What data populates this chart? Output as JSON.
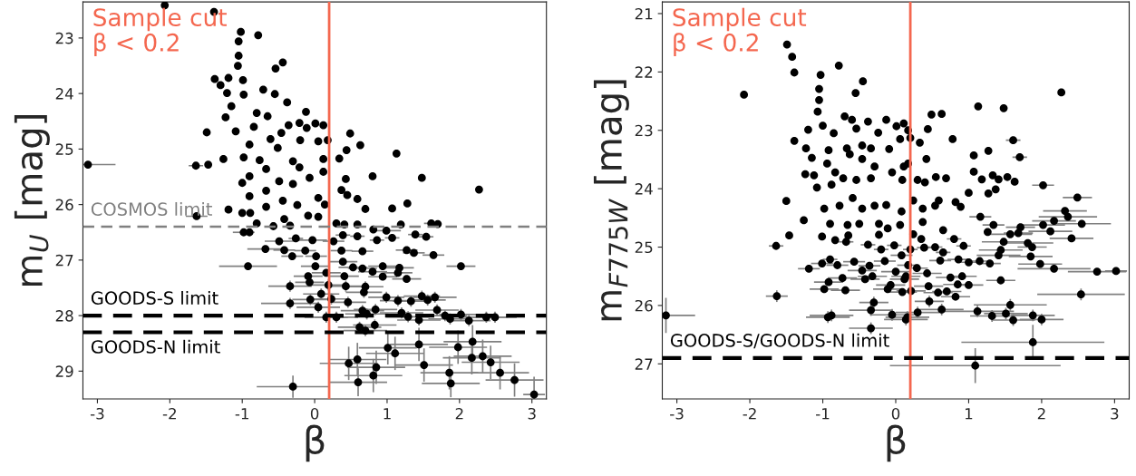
{
  "chart_data": [
    {
      "type": "scatter",
      "xlabel": "β",
      "ylabel": "m$_{U}$ [mag]",
      "xlim": [
        -3.2,
        3.2
      ],
      "ylim": [
        29.5,
        22.35
      ],
      "xticks": [
        -3,
        -2,
        -1,
        0,
        1,
        2,
        3
      ],
      "yticks": [
        23,
        24,
        25,
        26,
        27,
        28,
        29
      ],
      "marker": "circle",
      "ref_lines": [
        {
          "axis": "x",
          "value": 0.2,
          "label": "Sample cut\nβ < 0.2",
          "color": "#f4674f",
          "line_style": "solid"
        },
        {
          "axis": "y",
          "value": 26.4,
          "label": "COSMOS limit",
          "color": "#808080",
          "line_style": "dashed"
        },
        {
          "axis": "y",
          "value": 28.0,
          "label": "GOODS-S limit",
          "color": "#000000",
          "line_style": "dashed"
        },
        {
          "axis": "y",
          "value": 28.3,
          "label": "GOODS-N limit",
          "color": "#000000",
          "line_style": "dashed"
        }
      ],
      "series": [
        {
          "color": "#000000",
          "x": [
            -2.07,
            -1.39,
            -1.02,
            -0.78,
            -1.05,
            -1.05,
            -1.06,
            -0.44,
            -0.54,
            -1.38,
            -1.3,
            -1.19,
            -0.99,
            -0.71,
            -1.21,
            -0.98,
            -0.55,
            -0.38,
            -0.12,
            -1.15,
            -1.23,
            -0.8,
            -0.65,
            -1.49,
            -1.09,
            -0.84,
            -0.46,
            -0.36,
            -0.21,
            0.01,
            0.12,
            0.49,
            -0.11,
            -0.61,
            -0.2,
            0.05,
            0.18,
            0.63,
            -0.9,
            -0.51,
            1.13,
            -3.13,
            -1.64,
            -1.47,
            -1.26,
            -0.98,
            -0.76,
            -0.3,
            -0.21,
            0.12,
            0.34,
            0.44,
            0.8,
            1.48,
            2.27,
            0.43,
            0.12,
            -0.07,
            -0.67,
            -0.9,
            -1.0,
            -0.49,
            -0.3,
            -0.67,
            -0.9,
            -0.44,
            0.05,
            0.37,
            0.45,
            0.59,
            -0.67,
            -0.24,
            0.14,
            0.7,
            1.07,
            1.28,
            -1.63,
            -1.19,
            -1.0,
            -0.89,
            -0.42,
            -0.09,
            0.05,
            -0.8,
            -0.57,
            -0.34,
            0.3,
            0.41,
            0.59,
            0.81,
            0.99,
            1.19,
            1.61,
            1.7,
            -0.98,
            -0.9,
            -0.49,
            -0.26,
            -0.03,
            0.39,
            0.59,
            0.86,
            1.07,
            1.39,
            1.54,
            -0.68,
            -0.42,
            -0.13,
            0.26,
            0.37,
            0.66,
            1.27,
            1.37,
            1.64,
            -0.31,
            0.02,
            -0.92,
            0.01,
            0.39,
            0.53,
            0.66,
            0.94,
            1.17,
            2.02,
            -0.09,
            0.16,
            0.41,
            0.8,
            0.94,
            1.15,
            1.27,
            -0.07,
            -0.34,
            0.19,
            0.43,
            0.7,
            0.68,
            0.09,
            0.99,
            1.48,
            1.66,
            1.56,
            -0.06,
            0.23,
            0.46,
            1.15,
            1.33,
            -0.34,
            0.05,
            0.66,
            0.84,
            1.69,
            0.16,
            0.3,
            0.72,
            1.2,
            1.8,
            2.02,
            1.87,
            2.13,
            2.37,
            2.49,
            1.44,
            1.29,
            0.83,
            0.62,
            0.7,
            1.01,
            1.11,
            1.44,
            1.98,
            2.18,
            2.17,
            2.32,
            2.43,
            0.59,
            0.47,
            0.85,
            1.51,
            0.81,
            1.86,
            2.56,
            0.6,
            1.88,
            2.76,
            -0.3,
            3.03
          ],
          "values": [
            22.41,
            22.53,
            22.89,
            22.95,
            23.06,
            23.32,
            23.5,
            23.44,
            23.55,
            23.74,
            23.85,
            23.72,
            23.76,
            23.93,
            23.99,
            24.02,
            24.01,
            24.16,
            24.33,
            24.23,
            24.43,
            24.35,
            24.41,
            24.7,
            24.68,
            24.6,
            24.71,
            24.57,
            24.53,
            24.54,
            24.57,
            24.72,
            24.62,
            24.82,
            24.84,
            24.86,
            24.84,
            24.93,
            24.92,
            24.98,
            25.08,
            25.28,
            25.3,
            25.28,
            25.18,
            25.15,
            25.2,
            25.22,
            25.33,
            25.18,
            25.17,
            25.02,
            25.49,
            25.52,
            25.73,
            25.54,
            25.41,
            25.52,
            25.36,
            25.49,
            25.61,
            25.58,
            25.63,
            25.75,
            25.85,
            25.93,
            25.88,
            25.74,
            25.83,
            25.9,
            26.04,
            26.01,
            26.0,
            26.08,
            26.07,
            25.98,
            26.21,
            26.09,
            26.15,
            26.15,
            26.26,
            26.2,
            26.22,
            26.34,
            26.39,
            26.38,
            26.34,
            26.36,
            26.36,
            26.45,
            26.47,
            26.36,
            26.34,
            26.35,
            26.5,
            26.5,
            26.66,
            26.61,
            26.64,
            26.55,
            26.57,
            26.64,
            26.6,
            26.54,
            26.58,
            26.8,
            26.82,
            26.83,
            26.66,
            26.83,
            26.84,
            26.82,
            26.87,
            26.91,
            26.93,
            26.93,
            27.11,
            27.11,
            27.03,
            27.13,
            27.15,
            27.11,
            27.14,
            27.11,
            27.29,
            27.23,
            27.29,
            27.21,
            27.3,
            27.23,
            27.34,
            27.4,
            27.47,
            27.45,
            27.47,
            27.48,
            27.58,
            27.61,
            27.67,
            27.65,
            27.67,
            27.72,
            27.71,
            27.7,
            27.76,
            27.73,
            27.74,
            27.78,
            27.85,
            27.91,
            27.89,
            27.9,
            28.03,
            28.03,
            27.97,
            27.95,
            28.0,
            27.98,
            28.06,
            28.09,
            28.03,
            28.03,
            28.08,
            28.02,
            28.17,
            28.21,
            28.27,
            28.58,
            28.68,
            28.52,
            28.57,
            28.47,
            28.76,
            28.73,
            28.84,
            28.79,
            28.86,
            28.93,
            28.89,
            29.08,
            29.03,
            29.03,
            29.2,
            29.22,
            29.16,
            29.28,
            29.42
          ],
          "xerrors": [
            null,
            null,
            null,
            null,
            null,
            null,
            null,
            null,
            null,
            null,
            null,
            null,
            null,
            null,
            null,
            null,
            null,
            null,
            null,
            null,
            null,
            null,
            null,
            null,
            null,
            null,
            null,
            null,
            null,
            null,
            null,
            null,
            null,
            null,
            null,
            null,
            null,
            null,
            null,
            null,
            null,
            [
              -3.2,
              -2.75
            ],
            0.1,
            null,
            null,
            null,
            null,
            null,
            null,
            null,
            null,
            null,
            null,
            null,
            null,
            null,
            null,
            null,
            null,
            null,
            null,
            null,
            null,
            null,
            null,
            null,
            null,
            null,
            null,
            null,
            null,
            null,
            null,
            null,
            null,
            null,
            0.15,
            null,
            null,
            null,
            null,
            null,
            null,
            null,
            null,
            null,
            null,
            null,
            null,
            null,
            0.2,
            null,
            0.1,
            null,
            0.15,
            null,
            0.2,
            0.1,
            0.2,
            0.1,
            0.1,
            0.1,
            0.1,
            0.1,
            0.1,
            0.25,
            0.15,
            0.15,
            0.15,
            0.15,
            0.15,
            0.15,
            0.15,
            0.15,
            0.15,
            0.15,
            0.4,
            0.2,
            0.2,
            0.2,
            0.2,
            0.2,
            0.2,
            0.2,
            0.2,
            0.2,
            0.2,
            0.2,
            0.2,
            0.2,
            0.2,
            0.2,
            0.3,
            0.25,
            0.25,
            0.25,
            0.25,
            0.25,
            0.25,
            0.25,
            0.3,
            0.25,
            0.25,
            0.25,
            0.25,
            0.25,
            0.25,
            0.4,
            0.3,
            0.3,
            0.3,
            0.3,
            0.3,
            0.3,
            0.3,
            0.3,
            0.3,
            0.3,
            0.3,
            0.3,
            0.3,
            0.3,
            0.3,
            0.3,
            0.3,
            0.3,
            0.3,
            0.4,
            0.4,
            0.4,
            0.4,
            0.4,
            0.4,
            0.4,
            0.4,
            0.4,
            0.4,
            0.4,
            0.4,
            0.4,
            0.4,
            0.4,
            0.4,
            0.4,
            0.4,
            0.5,
            0.15
          ],
          "errors": [
            null,
            null,
            null,
            null,
            null,
            null,
            null,
            null,
            null,
            null,
            null,
            null,
            null,
            null,
            null,
            null,
            null,
            null,
            null,
            null,
            null,
            null,
            null,
            null,
            null,
            null,
            null,
            null,
            null,
            null,
            null,
            null,
            null,
            null,
            null,
            null,
            null,
            null,
            null,
            null,
            null,
            null,
            null,
            null,
            null,
            null,
            null,
            null,
            null,
            null,
            null,
            null,
            null,
            null,
            null,
            null,
            null,
            null,
            null,
            null,
            null,
            null,
            null,
            null,
            null,
            null,
            null,
            null,
            null,
            null,
            null,
            null,
            null,
            null,
            null,
            null,
            null,
            null,
            null,
            null,
            null,
            null,
            null,
            null,
            null,
            null,
            null,
            null,
            null,
            null,
            null,
            null,
            null,
            null,
            null,
            null,
            null,
            null,
            null,
            null,
            null,
            null,
            null,
            null,
            null,
            null,
            null,
            null,
            null,
            null,
            null,
            null,
            null,
            null,
            null,
            null,
            null,
            null,
            null,
            null,
            null,
            null,
            null,
            null,
            null,
            null,
            null,
            null,
            null,
            null,
            null,
            null,
            0.1,
            0.1,
            0.1,
            0.1,
            0.1,
            0.1,
            0.1,
            0.1,
            0.1,
            0.1,
            0.1,
            0.1,
            0.1,
            0.1,
            0.1,
            0.1,
            0.1,
            0.1,
            0.1,
            0.1,
            0.1,
            0.1,
            0.1,
            0.1,
            0.1,
            0.1,
            0.1,
            0.1,
            0.1,
            0.1,
            0.1,
            0.1,
            0.1,
            0.1,
            0.1,
            0.3,
            0.3,
            0.3,
            0.3,
            0.3,
            0.3,
            0.3,
            0.3,
            0.3,
            0.3,
            0.3,
            0.3,
            0.3,
            0.3,
            0.3,
            0.25,
            0.25,
            0.3,
            0.2,
            [
              29.1,
              29.5
            ]
          ]
        }
      ]
    },
    {
      "type": "scatter",
      "xlabel": "β",
      "ylabel": "m$_{F775W}$ [mag]",
      "xlim": [
        -3.2,
        3.2
      ],
      "ylim": [
        27.6,
        20.8
      ],
      "xticks": [
        -3,
        -2,
        -1,
        0,
        1,
        2,
        3
      ],
      "yticks": [
        21,
        22,
        23,
        24,
        25,
        26,
        27
      ],
      "marker": "circle",
      "ref_lines": [
        {
          "axis": "x",
          "value": 0.2,
          "label": "Sample cut\nβ < 0.2",
          "color": "#f4674f",
          "line_style": "solid"
        },
        {
          "axis": "y",
          "value": 26.9,
          "label": "GOODS-S/GOODS-N limit",
          "color": "#000000",
          "line_style": "dashed"
        }
      ],
      "series": [
        {
          "color": "#000000",
          "x": [
            -1.49,
            -1.42,
            -1.39,
            -0.78,
            -2.08,
            -1.03,
            -1.05,
            -1.05,
            -1.07,
            -0.45,
            -0.55,
            2.27,
            1.13,
            1.48,
            0.49,
            0.63,
            -0.7,
            -0.6,
            -0.38,
            -0.13,
            0.11,
            0.01,
            -1.2,
            -1.0,
            -0.85,
            -0.54,
            -0.24,
            0.17,
            0.44,
            -1.39,
            -1.23,
            -0.92,
            -0.67,
            -0.46,
            -0.34,
            -0.09,
            0.06,
            0.2,
            0.33,
            0.78,
            1.61,
            1.27,
            1.7,
            1.07,
            0.42,
            0.17,
            -1.15,
            -0.94,
            -0.63,
            -0.46,
            -0.29,
            0.11,
            -1.24,
            -1.12,
            -0.83,
            -0.72,
            -0.54,
            -0.34,
            -0.05,
            0.09,
            0.3,
            0.4,
            0.55,
            0.69,
            1.07,
            1.18,
            1.33,
            1.41,
            1.53,
            1.63,
            2.02,
            -1.08,
            -0.88,
            -1.5,
            -1.26,
            1.0,
            1.27,
            1.37,
            2.49,
            2.32,
            2.36,
            2.17,
            2.02,
            2.55,
            2.12,
            2.41,
            -0.98,
            -0.77,
            -0.59,
            -0.46,
            -0.29,
            -0.13,
            0.08,
            0.24,
            0.37,
            0.54,
            0.59,
            0.82,
            0.89,
            -0.9,
            -0.66,
            -0.5,
            -0.23,
            -0.11,
            0.06,
            0.37,
            1.16,
            1.34,
            1.71,
            -1.01,
            -0.83,
            -0.65,
            -0.23,
            0.24,
            0.35,
            0.65,
            1.26,
            1.57,
            1.68,
            -1.46,
            -1.64,
            -0.68,
            -0.38,
            -0.2,
            -0.02,
            0.2,
            0.39,
            0.54,
            0.65,
            0.8,
            0.93,
            1.48,
            1.81,
            1.87,
            1.44,
            1.41,
            1.85,
            -0.9,
            -1.19,
            -1.01,
            -0.8,
            -0.57,
            -0.36,
            -0.15,
            0.08,
            0.17,
            0.29,
            0.61,
            0.86,
            1.0,
            1.15,
            1.29,
            1.98,
            2.17,
            2.76,
            3.02,
            -0.73,
            -0.46,
            -0.32,
            0.0,
            0.14,
            0.43,
            0.75,
            0.91,
            1.44,
            -0.92,
            -0.42,
            -0.07,
            0.12,
            0.45,
            0.85,
            1.0,
            -0.98,
            -0.69,
            -0.11,
            0.09,
            0.21,
            0.58,
            0.7,
            0.82,
            2.54,
            -1.63,
            -0.3,
            0.46,
            1.57,
            -0.34,
            0.63,
            1.12,
            1.51,
            1.88,
            -0.05,
            0.3,
            0.16,
            1.32,
            -0.93,
            -0.88,
            0.14,
            1.61,
            2.0,
            -3.15,
            -0.34,
            1.88,
            1.09
          ],
          "values": [
            21.53,
            21.74,
            22.01,
            21.89,
            22.39,
            22.05,
            22.29,
            22.48,
            22.68,
            22.16,
            22.36,
            22.35,
            22.59,
            22.62,
            22.73,
            22.72,
            22.76,
            22.82,
            22.85,
            22.82,
            22.88,
            22.93,
            22.99,
            22.92,
            23.05,
            22.97,
            23.04,
            23.0,
            22.98,
            23.18,
            23.31,
            23.34,
            23.31,
            23.26,
            23.31,
            23.32,
            23.15,
            23.13,
            23.21,
            23.15,
            23.17,
            23.35,
            23.46,
            23.43,
            23.49,
            23.57,
            23.47,
            23.57,
            23.41,
            23.49,
            23.62,
            23.62,
            23.75,
            23.77,
            23.72,
            23.82,
            23.85,
            23.82,
            23.72,
            23.85,
            23.85,
            23.89,
            23.8,
            23.82,
            23.71,
            23.84,
            23.77,
            23.84,
            23.8,
            23.88,
            23.94,
            23.98,
            23.93,
            24.21,
            24.54,
            24.07,
            24.08,
            24.01,
            24.15,
            24.38,
            24.48,
            24.55,
            24.62,
            24.6,
            24.73,
            24.85,
            24.34,
            24.29,
            24.16,
            24.34,
            24.29,
            24.28,
            24.39,
            24.2,
            24.34,
            24.29,
            24.2,
            24.23,
            24.31,
            24.6,
            24.62,
            24.6,
            24.6,
            24.68,
            24.62,
            24.57,
            24.48,
            24.62,
            24.66,
            24.82,
            24.88,
            24.8,
            24.79,
            24.78,
            24.86,
            24.71,
            24.74,
            24.78,
            24.76,
            24.8,
            24.98,
            24.91,
            24.96,
            25.04,
            24.97,
            25.04,
            25.01,
            25.0,
            25.09,
            24.86,
            24.98,
            24.91,
            24.93,
            25.0,
            25.05,
            25.14,
            25.16,
            25.21,
            25.37,
            25.28,
            25.31,
            25.25,
            25.32,
            25.24,
            25.14,
            25.31,
            25.36,
            25.23,
            25.21,
            25.26,
            25.24,
            25.28,
            25.29,
            25.37,
            25.42,
            25.41,
            25.53,
            25.4,
            25.5,
            25.42,
            25.5,
            25.45,
            25.52,
            25.5,
            25.57,
            25.6,
            25.55,
            25.65,
            25.55,
            25.67,
            25.64,
            25.65,
            25.72,
            25.74,
            25.72,
            25.77,
            25.75,
            25.78,
            25.76,
            25.85,
            25.81,
            25.84,
            25.95,
            25.93,
            25.99,
            26.08,
            26.07,
            26.1,
            26.14,
            26.17,
            26.16,
            26.12,
            26.2,
            26.18,
            26.2,
            26.17,
            26.24,
            26.25,
            26.24,
            26.17,
            26.39,
            26.63,
            27.03
          ],
          "xerrors": [
            null,
            null,
            null,
            null,
            null,
            null,
            null,
            null,
            null,
            null,
            null,
            null,
            null,
            null,
            null,
            null,
            null,
            null,
            null,
            null,
            null,
            null,
            null,
            null,
            null,
            null,
            null,
            null,
            null,
            null,
            null,
            null,
            null,
            null,
            null,
            null,
            null,
            null,
            null,
            null,
            0.1,
            null,
            0.1,
            null,
            null,
            null,
            null,
            null,
            null,
            null,
            null,
            null,
            null,
            null,
            null,
            null,
            null,
            null,
            null,
            null,
            null,
            null,
            null,
            null,
            null,
            null,
            null,
            null,
            null,
            null,
            0.15,
            null,
            null,
            null,
            null,
            null,
            null,
            null,
            0.2,
            0.3,
            0.4,
            0.3,
            0.3,
            0.4,
            0.3,
            0.3,
            null,
            null,
            null,
            null,
            null,
            null,
            null,
            null,
            null,
            null,
            null,
            null,
            null,
            null,
            null,
            null,
            null,
            null,
            null,
            null,
            0.15,
            0.15,
            0.2,
            null,
            null,
            null,
            null,
            null,
            null,
            null,
            null,
            0.3,
            0.2,
            null,
            0.1,
            0.1,
            0.1,
            0.1,
            0.1,
            0.1,
            0.1,
            0.1,
            0.1,
            0.1,
            0.1,
            0.3,
            0.35,
            0.2,
            0.3,
            0.3,
            0.3,
            0.1,
            0.15,
            0.15,
            0.15,
            0.15,
            0.15,
            0.15,
            0.15,
            0.15,
            0.15,
            0.15,
            0.15,
            0.15,
            0.15,
            0.15,
            0.3,
            0.5,
            0.4,
            0.15,
            0.2,
            0.2,
            0.2,
            0.2,
            0.2,
            0.2,
            0.2,
            0.2,
            0.2,
            0.2,
            0.2,
            0.2,
            0.2,
            0.2,
            0.2,
            0.2,
            0.2,
            0.2,
            0.2,
            0.2,
            0.2,
            0.2,
            0.2,
            0.2,
            0.6,
            0.15,
            0.2,
            0.2,
            0.5,
            0.3,
            0.3,
            0.5,
            0.3,
            0.3,
            0.3,
            0.3,
            0.3,
            0.3,
            0.3,
            0.3,
            0.3,
            0.3,
            0.3,
            [
              -3.2,
              -2.75
            ],
            0.3,
            0.98,
            1.17
          ],
          "errors": [
            null,
            null,
            null,
            null,
            null,
            null,
            null,
            null,
            null,
            null,
            null,
            null,
            null,
            null,
            null,
            null,
            null,
            null,
            null,
            null,
            null,
            null,
            null,
            null,
            null,
            null,
            null,
            null,
            null,
            null,
            null,
            null,
            null,
            null,
            null,
            null,
            null,
            null,
            null,
            null,
            null,
            null,
            null,
            null,
            null,
            null,
            null,
            null,
            null,
            null,
            null,
            null,
            null,
            null,
            null,
            null,
            null,
            null,
            null,
            null,
            null,
            null,
            null,
            null,
            null,
            null,
            null,
            null,
            null,
            null,
            null,
            null,
            null,
            null,
            null,
            null,
            null,
            null,
            null,
            null,
            null,
            null,
            null,
            null,
            null,
            null,
            null,
            null,
            null,
            null,
            null,
            null,
            null,
            null,
            null,
            null,
            null,
            null,
            null,
            null,
            null,
            null,
            null,
            null,
            null,
            null,
            null,
            null,
            null,
            null,
            null,
            null,
            null,
            null,
            null,
            null,
            null,
            null,
            null,
            null,
            null,
            null,
            null,
            null,
            null,
            null,
            null,
            null,
            null,
            null,
            null,
            null,
            null,
            null,
            null,
            null,
            null,
            null,
            null,
            null,
            null,
            null,
            null,
            null,
            null,
            null,
            null,
            null,
            null,
            null,
            null,
            null,
            null,
            null,
            null,
            null,
            null,
            null,
            null,
            null,
            null,
            null,
            null,
            null,
            null,
            null,
            null,
            null,
            null,
            null,
            null,
            null,
            null,
            null,
            null,
            null,
            null,
            null,
            null,
            null,
            0.1,
            0.1,
            0.1,
            0.1,
            0.1,
            0.1,
            0.1,
            0.1,
            0.1,
            0.1,
            0.1,
            0.1,
            0.1,
            0.1,
            0.1,
            0.1,
            0.1,
            0.1,
            0.1,
            0.3,
            0.1,
            0.3,
            0.3
          ]
        }
      ]
    }
  ]
}
